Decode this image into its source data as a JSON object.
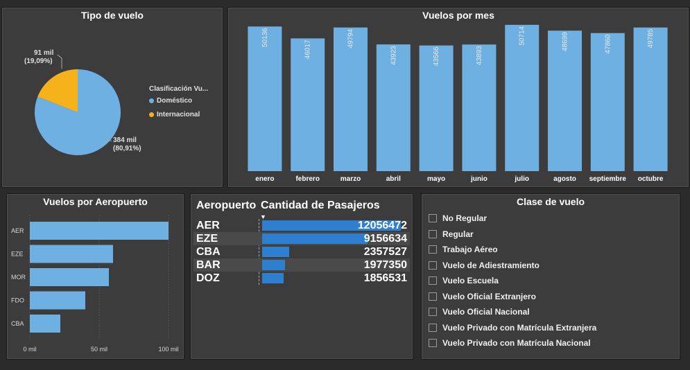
{
  "tipo_vuelo": {
    "title": "Tipo de vuelo",
    "legend_title": "Clasificación Vu...",
    "slices": [
      {
        "name": "Doméstico",
        "value": 80.91,
        "label_line1": "384 mil",
        "label_line2": "(80,91%)",
        "color": "#6fb0e2"
      },
      {
        "name": "Internacional",
        "value": 19.09,
        "label_line1": "91 mil",
        "label_line2": "(19,09%)",
        "color": "#f5b21a"
      }
    ]
  },
  "vuelos_mes": {
    "title": "Vuelos por mes",
    "bar_color": "#6fb0e2"
  },
  "vuelos_aeropuerto": {
    "title": "Vuelos por Aeropuerto",
    "bar_color": "#6fb0e2"
  },
  "pasajeros": {
    "col1": "Aeropuerto",
    "col2": "Cantidad de Pasajeros",
    "sort_icon": "sort-desc-icon",
    "bar_color": "#2e7fd0",
    "rows": [
      {
        "airport": "AER",
        "value": "12056472",
        "n": 12056472
      },
      {
        "airport": "EZE",
        "value": "9156634",
        "n": 9156634
      },
      {
        "airport": "CBA",
        "value": "2357527",
        "n": 2357527
      },
      {
        "airport": "BAR",
        "value": "1977350",
        "n": 1977350
      },
      {
        "airport": "DOZ",
        "value": "1856531",
        "n": 1856531
      }
    ]
  },
  "clase_vuelo": {
    "title": "Clase de vuelo",
    "items": [
      "No Regular",
      "Regular",
      "Trabajo Aéreo",
      "Vuelo de Adiestramiento",
      "Vuelo Escuela",
      "Vuelo Oficial Extranjero",
      "Vuelo Oficial Nacional",
      "Vuelo Privado con Matrícula Extranjera",
      "Vuelo Privado con Matrícula Nacional"
    ]
  },
  "chart_data": [
    {
      "type": "pie",
      "title": "Tipo de vuelo",
      "categories": [
        "Doméstico",
        "Internacional"
      ],
      "values": [
        80.91,
        19.09
      ],
      "data_labels": [
        "384 mil (80,91%)",
        "91 mil (19,09%)"
      ],
      "legend": "right"
    },
    {
      "type": "bar",
      "title": "Vuelos por mes",
      "categories": [
        "enero",
        "febrero",
        "marzo",
        "abril",
        "mayo",
        "junio",
        "julio",
        "agosto",
        "septiembre",
        "octubre"
      ],
      "values": [
        50136,
        46017,
        49794,
        43923,
        43566,
        43893,
        50714,
        48699,
        47860,
        49785
      ],
      "ylim": [
        0,
        55000
      ]
    },
    {
      "type": "bar",
      "orientation": "horizontal",
      "title": "Vuelos por Aeropuerto",
      "categories": [
        "AER",
        "EZE",
        "MOR",
        "FDO",
        "CBA"
      ],
      "values": [
        100,
        60,
        57,
        40,
        22
      ],
      "xticks": [
        "0 mil",
        "50 mil",
        "100 mil"
      ],
      "xlim": [
        0,
        100
      ],
      "grid": true
    }
  ]
}
